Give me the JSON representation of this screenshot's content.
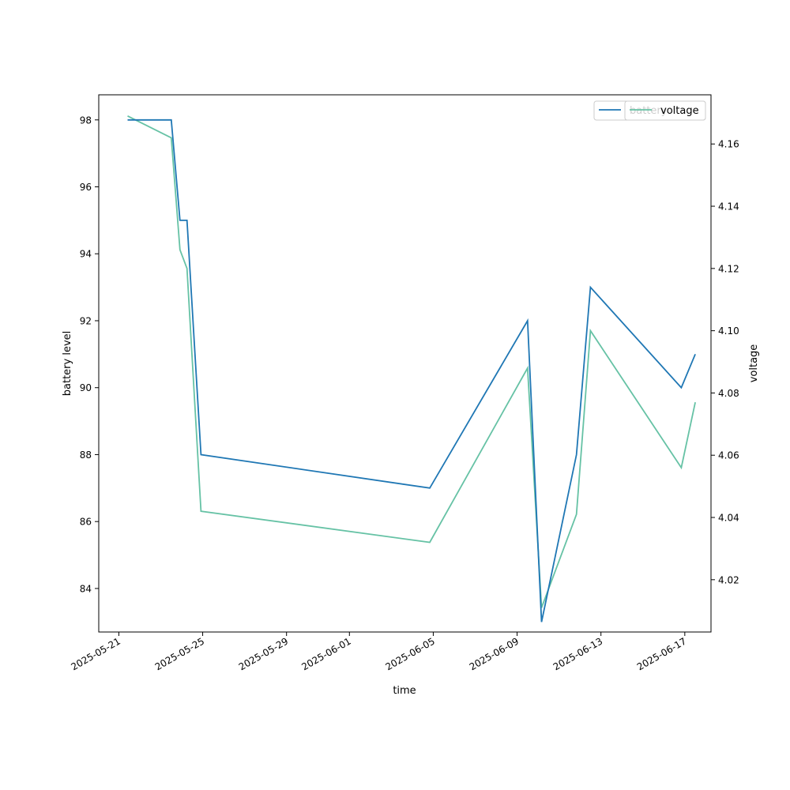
{
  "chart_data": {
    "type": "line",
    "xlabel": "time",
    "ylabel_left": "battery level",
    "ylabel_right": "voltage",
    "x_tick_labels": [
      "2025-05-21",
      "2025-05-25",
      "2025-05-29",
      "2025-06-01",
      "2025-06-05",
      "2025-06-09",
      "2025-06-13",
      "2025-06-17"
    ],
    "y_left_tick_labels": [
      "84",
      "86",
      "88",
      "90",
      "92",
      "94",
      "96",
      "98"
    ],
    "y_right_tick_labels": [
      "4.02",
      "4.04",
      "4.06",
      "4.08",
      "4.10",
      "4.12",
      "4.14",
      "4.16"
    ],
    "y_left_range": [
      82.7,
      98.75
    ],
    "y_right_range": [
      4.0032,
      4.1758
    ],
    "x_range": [
      "2025-05-20T01:00",
      "2025-06-18T06:00"
    ],
    "legend_position": "top-right",
    "series": [
      {
        "name": "battery",
        "axis": "left",
        "color": "#1f77b4",
        "points": [
          [
            "2025-05-21T10:00",
            98
          ],
          [
            "2025-05-23T12:00",
            98
          ],
          [
            "2025-05-23T22:00",
            95
          ],
          [
            "2025-05-24T06:00",
            95
          ],
          [
            "2025-05-24T22:00",
            88
          ],
          [
            "2025-06-04T20:00",
            87
          ],
          [
            "2025-06-09T12:00",
            92
          ],
          [
            "2025-06-10T04:00",
            83
          ],
          [
            "2025-06-11T20:00",
            88
          ],
          [
            "2025-06-12T12:00",
            93
          ],
          [
            "2025-06-16T20:00",
            90
          ],
          [
            "2025-06-17T12:00",
            91
          ]
        ]
      },
      {
        "name": "voltage",
        "axis": "right",
        "color": "#66c2a5",
        "points": [
          [
            "2025-05-21T10:00",
            4.169
          ],
          [
            "2025-05-23T12:00",
            4.162
          ],
          [
            "2025-05-23T22:00",
            4.126
          ],
          [
            "2025-05-24T06:00",
            4.12
          ],
          [
            "2025-05-24T22:00",
            4.042
          ],
          [
            "2025-06-04T20:00",
            4.032
          ],
          [
            "2025-06-09T12:00",
            4.088
          ],
          [
            "2025-06-10T04:00",
            4.011
          ],
          [
            "2025-06-11T20:00",
            4.041
          ],
          [
            "2025-06-12T12:00",
            4.1
          ],
          [
            "2025-06-16T20:00",
            4.056
          ],
          [
            "2025-06-17T12:00",
            4.077
          ]
        ]
      }
    ],
    "legends": [
      {
        "entries": [
          "battery"
        ]
      },
      {
        "entries": [
          "voltage"
        ]
      }
    ]
  }
}
